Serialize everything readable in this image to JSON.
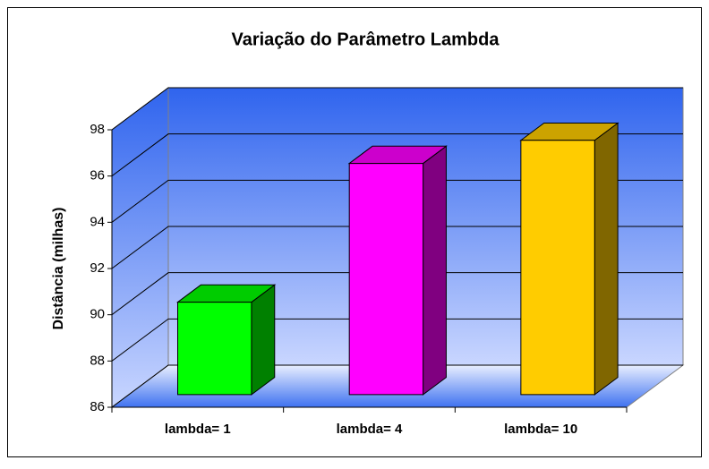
{
  "chart_data": {
    "type": "bar3d",
    "title": "Variação do Parâmetro Lambda",
    "ylabel": "Distância (milhas)",
    "categories": [
      "lambda= 1",
      "lambda= 4",
      "lambda= 10"
    ],
    "values": [
      90,
      96,
      97
    ],
    "colors": [
      "#00ff00",
      "#ff00ff",
      "#ffcc00"
    ],
    "ylim": [
      86,
      98
    ],
    "yticks": [
      86,
      88,
      90,
      92,
      94,
      96,
      98
    ],
    "grid": true
  }
}
